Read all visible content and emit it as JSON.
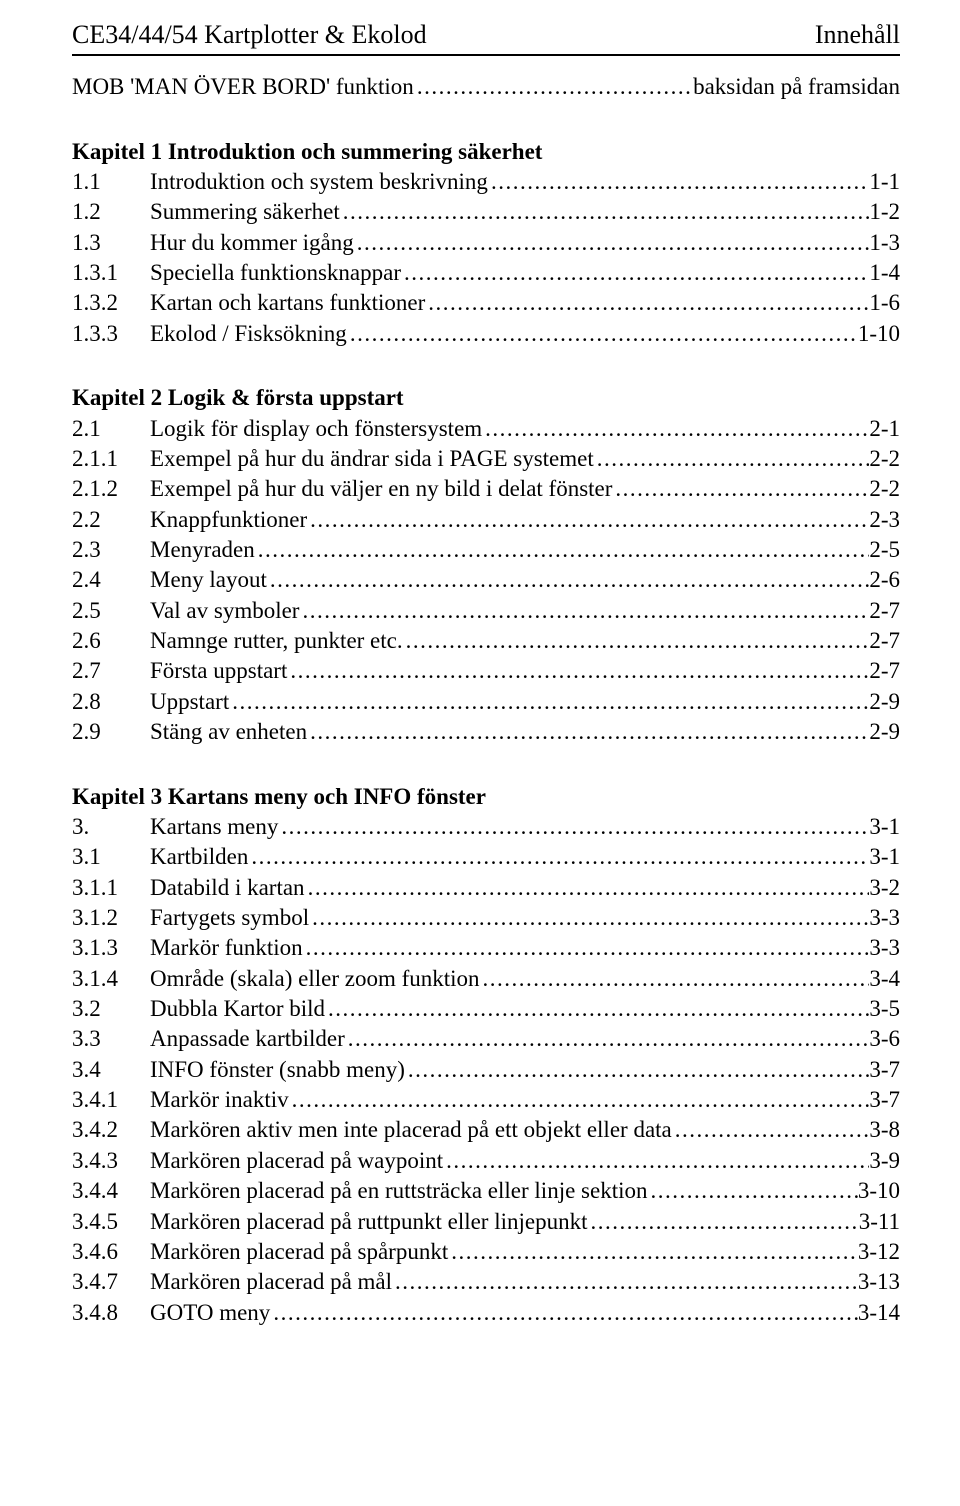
{
  "header": {
    "left": "CE34/44/54 Kartplotter & Ekolod",
    "right": "Innehåll"
  },
  "mob": {
    "label": "MOB 'MAN ÖVER BORD' funktion",
    "page": "baksidan på framsidan"
  },
  "dots_fill": "..................................................................................................................................................................................................",
  "sections": [
    {
      "title": "Kapitel 1 Introduktion och summering säkerhet",
      "entries": [
        {
          "num": "1.1",
          "label": "Introduktion och system beskrivning",
          "page": "1-1"
        },
        {
          "num": "1.2",
          "label": "Summering säkerhet",
          "page": "1-2"
        },
        {
          "num": "1.3",
          "label": "Hur du kommer igång",
          "page": "1-3"
        },
        {
          "num": "1.3.1",
          "label": "Speciella funktionsknappar",
          "page": "1-4"
        },
        {
          "num": "1.3.2",
          "label": "Kartan och kartans funktioner",
          "page": "1-6"
        },
        {
          "num": "1.3.3",
          "label": "Ekolod / Fisksökning",
          "page": "1-10"
        }
      ]
    },
    {
      "title": "Kapitel 2 Logik & första uppstart",
      "entries": [
        {
          "num": "2.1",
          "label": "Logik för display och fönstersystem",
          "page": "2-1"
        },
        {
          "num": "2.1.1",
          "label": "Exempel på hur du ändrar sida i PAGE systemet",
          "page": "2-2"
        },
        {
          "num": "2.1.2",
          "label": "Exempel på hur du väljer en ny bild i delat fönster",
          "page": "2-2"
        },
        {
          "num": "2.2",
          "label": "Knappfunktioner",
          "page": "2-3"
        },
        {
          "num": "2.3",
          "label": "Menyraden",
          "page": "2-5"
        },
        {
          "num": "2.4",
          "label": "Meny layout",
          "page": "2-6"
        },
        {
          "num": "2.5",
          "label": "Val av symboler",
          "page": "2-7"
        },
        {
          "num": "2.6",
          "label": "Namnge rutter, punkter etc.",
          "page": "2-7"
        },
        {
          "num": "2.7",
          "label": "Första uppstart",
          "page": "2-7"
        },
        {
          "num": "2.8",
          "label": "Uppstart",
          "page": "2-9"
        },
        {
          "num": "2.9",
          "label": "Stäng av enheten",
          "page": "2-9"
        }
      ]
    },
    {
      "title": "Kapitel 3 Kartans meny och INFO fönster",
      "entries": [
        {
          "num": "3.",
          "label": "Kartans meny",
          "page": "3-1"
        },
        {
          "num": "3.1",
          "label": "Kartbilden",
          "page": "3-1"
        },
        {
          "num": "3.1.1",
          "label": "Databild i kartan",
          "page": "3-2"
        },
        {
          "num": "3.1.2",
          "label": "Fartygets symbol",
          "page": "3-3"
        },
        {
          "num": "3.1.3",
          "label": "Markör funktion",
          "page": "3-3"
        },
        {
          "num": "3.1.4",
          "label": "Område (skala) eller zoom funktion",
          "page": "3-4"
        },
        {
          "num": "3.2",
          "label": "Dubbla Kartor bild",
          "page": "3-5"
        },
        {
          "num": "3.3",
          "label": "Anpassade kartbilder",
          "page": "3-6"
        },
        {
          "num": "3.4",
          "label": "INFO fönster (snabb meny)",
          "page": "3-7"
        },
        {
          "num": "3.4.1",
          "label": "Markör inaktiv",
          "page": "3-7"
        },
        {
          "num": "3.4.2",
          "label": "Markören aktiv men inte placerad på ett objekt eller data",
          "page": "3-8"
        },
        {
          "num": "3.4.3",
          "label": "Markören placerad på waypoint",
          "page": "3-9"
        },
        {
          "num": "3.4.4",
          "label": "Markören placerad på en ruttsträcka eller linje sektion",
          "page": "3-10"
        },
        {
          "num": "3.4.5",
          "label": "Markören placerad på ruttpunkt eller linjepunkt",
          "page": "3-11"
        },
        {
          "num": "3.4.6",
          "label": "Markören placerad på spårpunkt",
          "page": "3-12"
        },
        {
          "num": "3.4.7",
          "label": "Markören placerad på mål",
          "page": "3-13"
        },
        {
          "num": "3.4.8",
          "label": "GOTO meny",
          "page": "3-14"
        }
      ]
    }
  ]
}
